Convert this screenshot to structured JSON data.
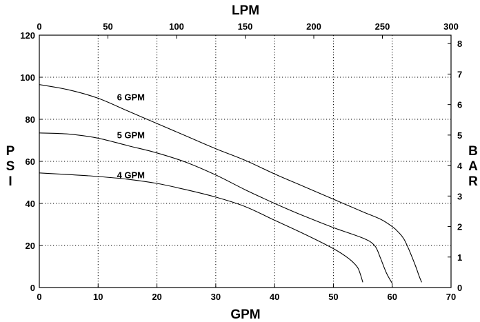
{
  "chart_data": {
    "type": "line",
    "title": "",
    "xlabel": "GPM",
    "x2label": "LPM",
    "ylabel": "PSI",
    "y2label": "BAR",
    "xlim": [
      0,
      70
    ],
    "ylim": [
      0,
      120
    ],
    "x2lim": [
      0,
      300
    ],
    "y2lim": [
      0,
      8.2759
    ],
    "x_ticks": [
      "0",
      "10",
      "20",
      "30",
      "40",
      "50",
      "60",
      "70"
    ],
    "y_ticks": [
      "0",
      "20",
      "40",
      "60",
      "80",
      "100",
      "120"
    ],
    "x2_ticks": [
      "0",
      "50",
      "100",
      "150",
      "200",
      "250",
      "300"
    ],
    "y2_ticks": [
      "0",
      "1",
      "2",
      "3",
      "4",
      "5",
      "6",
      "7",
      "8"
    ],
    "grid": true,
    "series": [
      {
        "name": "6 GPM",
        "x": [
          0,
          5,
          10,
          15,
          20,
          25,
          30,
          35,
          40,
          45,
          50,
          55,
          58,
          60,
          61,
          62,
          63,
          64,
          64.5,
          65
        ],
        "y": [
          96.5,
          94,
          90,
          84,
          78,
          72,
          66,
          60.5,
          54,
          48,
          42,
          36,
          32.5,
          29,
          26.5,
          23,
          17,
          10,
          6,
          2.5
        ]
      },
      {
        "name": "5 GPM",
        "x": [
          0,
          5,
          10,
          15,
          20,
          25,
          30,
          35,
          40,
          45,
          50,
          55,
          57,
          58,
          59,
          60
        ],
        "y": [
          73.5,
          73,
          71,
          67.5,
          64,
          59.5,
          53.5,
          46.5,
          40,
          34,
          28.5,
          23.5,
          20,
          14,
          7,
          2
        ]
      },
      {
        "name": "4 GPM",
        "x": [
          0,
          5,
          10,
          15,
          20,
          25,
          30,
          35,
          40,
          45,
          50,
          52.5,
          54,
          54.5,
          55
        ],
        "y": [
          54.5,
          53.7,
          52.8,
          51.5,
          49.5,
          46.5,
          43,
          38.5,
          32,
          25.5,
          18.5,
          14,
          10,
          7,
          2.5
        ]
      }
    ],
    "annotations": [
      {
        "text": "6 GPM",
        "x": 13.2,
        "y": 89
      },
      {
        "text": "5 GPM",
        "x": 13.2,
        "y": 71
      },
      {
        "text": "4 GPM",
        "x": 13.2,
        "y": 52
      }
    ]
  }
}
